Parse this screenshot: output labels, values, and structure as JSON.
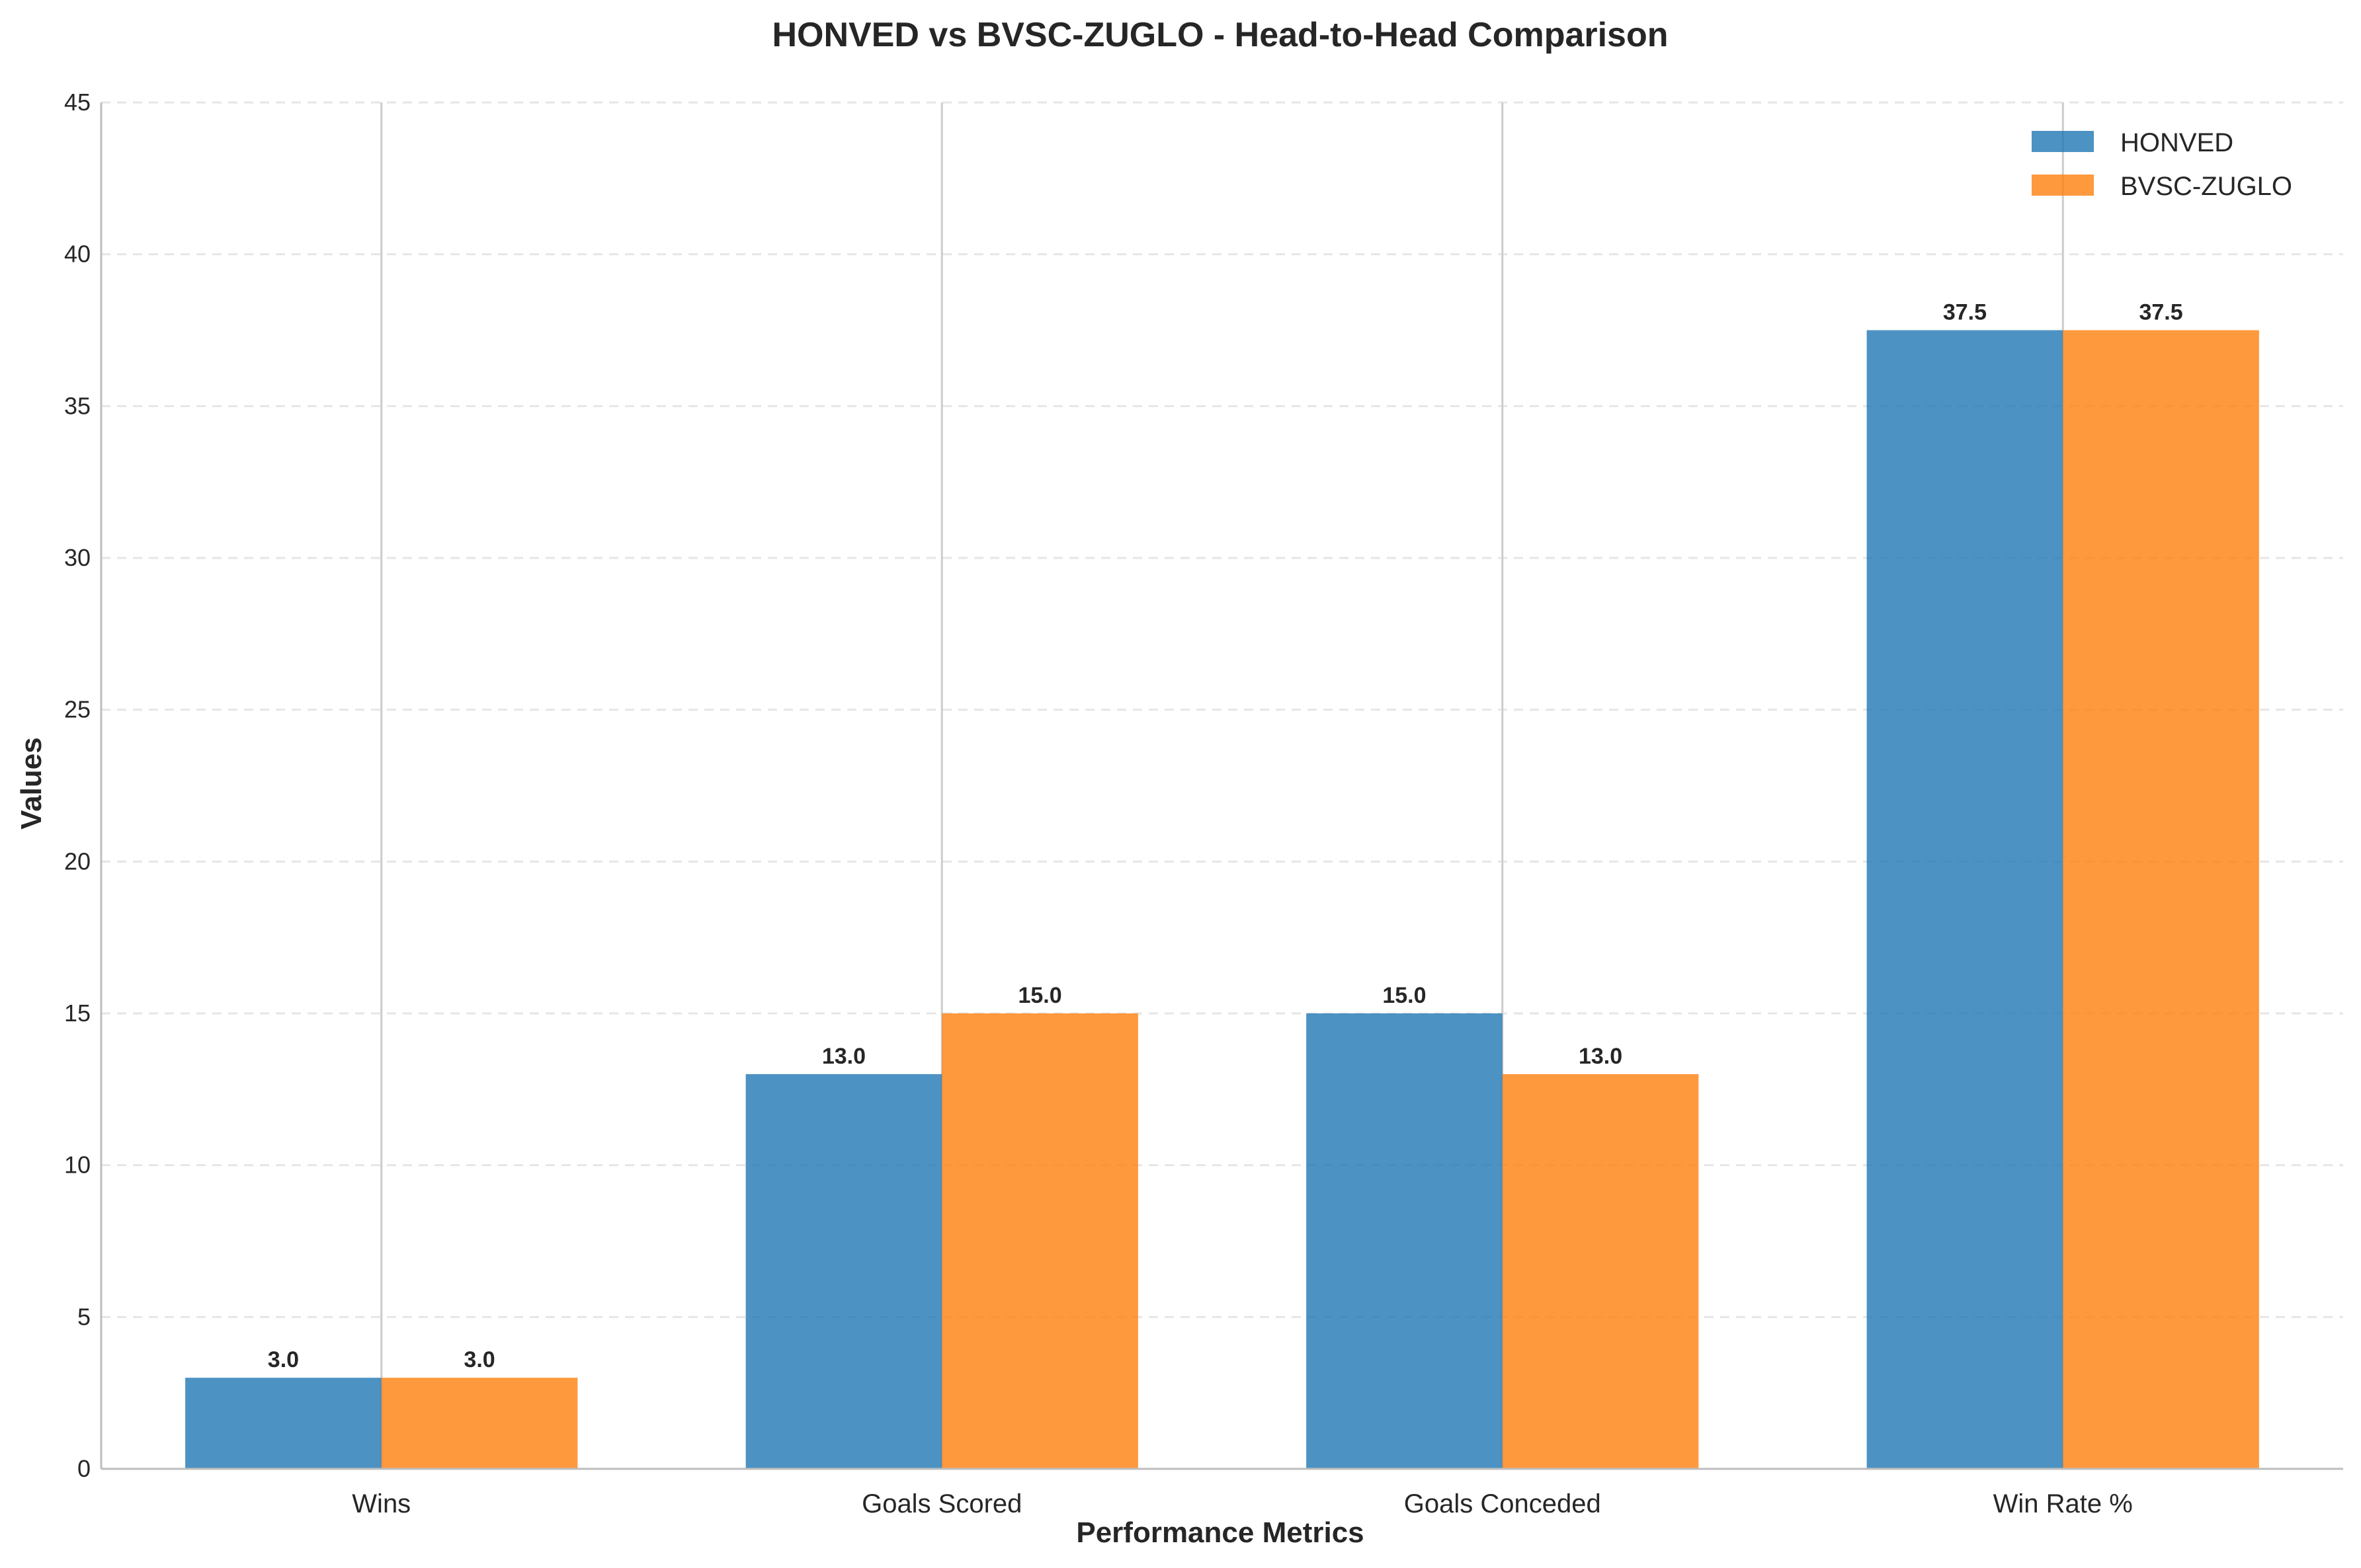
{
  "chart_data": {
    "type": "bar",
    "title": "HONVED vs BVSC-ZUGLO - Head-to-Head Comparison",
    "xlabel": "Performance Metrics",
    "ylabel": "Values",
    "categories": [
      "Wins",
      "Goals Scored",
      "Goals Conceded",
      "Win Rate %"
    ],
    "series": [
      {
        "name": "HONVED",
        "values": [
          3.0,
          13.0,
          15.0,
          37.5
        ],
        "color": "#1f77b4"
      },
      {
        "name": "BVSC-ZUGLO",
        "values": [
          3.0,
          15.0,
          13.0,
          37.5
        ],
        "color": "#ff7f0e"
      }
    ],
    "data_labels": [
      [
        "3.0",
        "13.0",
        "15.0",
        "37.5"
      ],
      [
        "3.0",
        "15.0",
        "13.0",
        "37.5"
      ]
    ],
    "ylim": [
      0,
      45
    ],
    "yticks": [
      0,
      5,
      10,
      15,
      20,
      25,
      30,
      35,
      40,
      45
    ],
    "ytick_labels": [
      "0",
      "5",
      "10",
      "15",
      "20",
      "25",
      "30",
      "35",
      "40",
      "45"
    ],
    "grid": true,
    "legend_position": "top-right"
  }
}
